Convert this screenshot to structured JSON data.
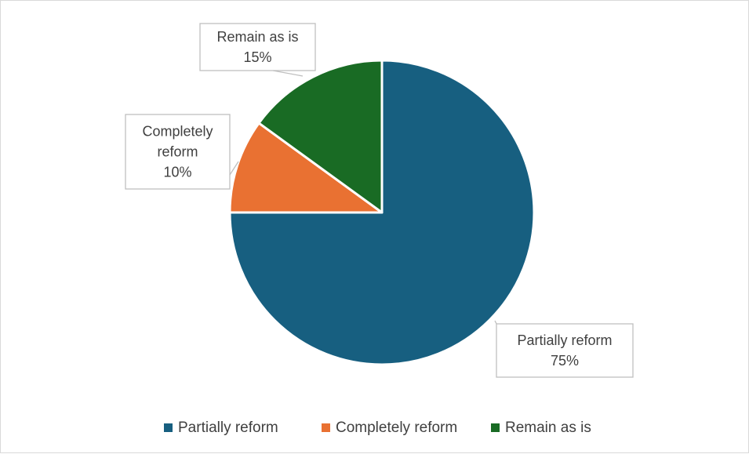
{
  "chart_data": {
    "type": "pie",
    "title": "",
    "slices": [
      {
        "label": "Partially reform",
        "value": 75,
        "value_label": "75%",
        "color": "#175f80"
      },
      {
        "label": "Completely reform",
        "value": 10,
        "value_label": "10%",
        "color": "#e97132"
      },
      {
        "label": "Remain as is",
        "value": 15,
        "value_label": "15%",
        "color": "#196b24"
      }
    ],
    "legend_position": "bottom",
    "start_angle_deg": 0,
    "direction": "clockwise"
  }
}
